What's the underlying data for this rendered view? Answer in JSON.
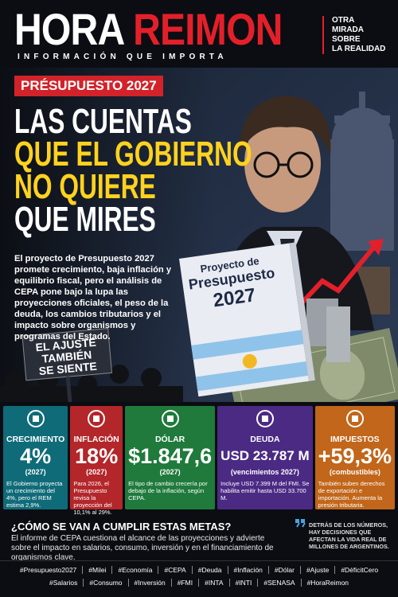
{
  "header": {
    "brand_left": "HORA",
    "brand_right": "REIMON",
    "tagline": "INFORMACIÓN QUE IMPORTA",
    "side_lines": [
      "OTRA",
      "MIRADA",
      "SOBRE",
      "LA REALIDAD"
    ]
  },
  "hero": {
    "kicker": "PRÉSUPUESTO 2027",
    "headline": [
      "LAS CUENTAS",
      "QUE EL GOBIERNO",
      "NO QUIERE",
      "QUE MIRES"
    ],
    "body": "El proyecto de Presupuesto 2027 promete crecimiento, baja inflación y equilibrio fiscal, pero el análisis de CEPA pone bajo la lupa las proyecciones oficiales, el peso de la deuda, los cambios tributarios y el impacto sobre organismos y programas del Estado.",
    "book": [
      "Proyecto de",
      "Presupuesto",
      "2027"
    ],
    "sign": [
      "EL AJUSTE",
      "TAMBIÉN",
      "SE SIENTE"
    ]
  },
  "cards": [
    {
      "title": "CRECIMIENTO",
      "value": "4%",
      "sub": "(2027)",
      "note": "El Gobierno proyecta un crecimiento del 4%, pero el REM estima 2,9%."
    },
    {
      "title": "INFLACIÓN",
      "value": "18%",
      "sub": "(2027)",
      "note": "Para 2026, el Presupuesto revisa la proyección del 10,1% al 29%."
    },
    {
      "title": "DÓLAR",
      "value": "$1.847,6",
      "sub": "(2027)",
      "note": "El tipo de cambio crecería por debajo de la inflación, según CEPA."
    },
    {
      "title": "DEUDA",
      "value": "USD 23.787 M",
      "sub": "(vencimientos 2027)",
      "note": "Incluye USD 7.399 M del FMI. Se habilita emitir hasta USD 33.700 M."
    },
    {
      "title": "IMPUESTOS",
      "value": "+59,3%",
      "sub": "(combustibles)",
      "note": "También suben derechos de exportación e importación. Aumenta la presión tributaria."
    }
  ],
  "bottom": {
    "question": "¿CÓMO SE VAN A CUMPLIR ESTAS METAS?",
    "text": "El informe de CEPA cuestiona el alcance de las proyecciones y advierte sobre el impacto en salarios, consumo, inversión y en el financiamiento de organismos clave.",
    "quote": "DETRÁS DE LOS NÚMEROS, HAY DECISIONES QUE AFECTAN LA VIDA REAL DE MILLONES DE ARGENTINOS."
  },
  "hashtags": [
    [
      "#Presupuesto2027",
      "#Milei",
      "#Economía",
      "#CEPA",
      "#Deuda",
      "#Inflación",
      "#Dólar",
      "#Ajuste",
      "#DéficitCero"
    ],
    [
      "#Salarios",
      "#Consumo",
      "#Inversión",
      "#FMI",
      "#INTA",
      "#INTI",
      "#SENASA",
      "#HoraReimon"
    ]
  ]
}
